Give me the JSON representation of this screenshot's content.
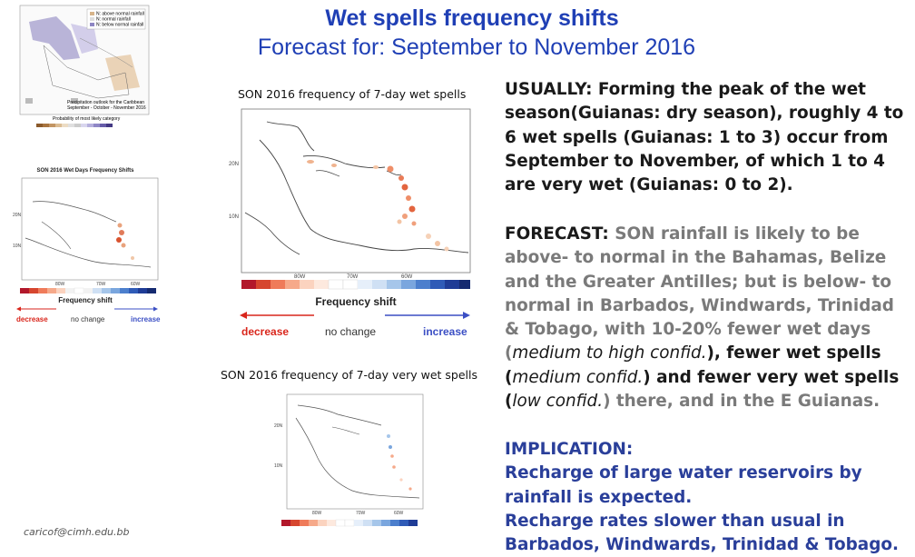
{
  "header": {
    "title": "Wet spells frequency shifts",
    "subtitle": "Forecast for: September to November 2016"
  },
  "captions": {
    "top_map": "SON 2016 frequency of 7-day wet spells",
    "bottom_map": "SON 2016 frequency of 7-day very wet spells"
  },
  "contact": "caricof@cimh.edu.bb",
  "legend_large": {
    "title": "Frequency shift",
    "decrease": "decrease",
    "no_change": "no change",
    "increase": "increase",
    "lon_labels": [
      "80W",
      "70W",
      "60W"
    ],
    "lat_labels": [
      "20N",
      "10N"
    ]
  },
  "legend_small": {
    "title": "Frequency shift",
    "decrease": "decrease",
    "no_change": "no change",
    "increase": "increase",
    "lon_labels": [
      "80W",
      "70W",
      "60W"
    ],
    "lat_labels": [
      "20N",
      "10N"
    ]
  },
  "thumbnail": {
    "title": "SON 2016 Wet Days Frequency Shifts",
    "precip_title": "Precipitation outlook for the Caribbean",
    "precip_period": "September - October - November 2016",
    "legend_items": [
      "N: above normal rainfall",
      "N: normal rainfall",
      "N: below normal rainfall"
    ],
    "prob_label": "Probability of most likely category"
  },
  "colors": {
    "title_blue": "#1f3fb5",
    "decrease_red": "#d9261c",
    "increase_blue": "#3b4fc4",
    "implication_blue": "#2a3f9a"
  },
  "text_blocks": {
    "usually": "USUALLY: Forming the peak of the wet season(Guianas: dry season), roughly 4 to 6 wet spells (Guianas: 1 to 3) occur from September to November, of which 1 to 4 are very wet (Guianas: 0 to 2).",
    "forecast_label": "FORECAST:",
    "forecast_1": " SON rainfall is likely to be above- to normal in the Bahamas, Belize and the Greater Antilles; but is below- to normal in Barbados, Windwards, Trinidad & Tobago, with 10-20% fewer wet days (",
    "forecast_conf1": "medium to high confid.",
    "forecast_2": "), fewer wet spells (",
    "forecast_conf2": "medium confid.",
    "forecast_3": ") and fewer very wet spells (",
    "forecast_conf3": "low confid.",
    "forecast_4": ") there, and in the E Guianas.",
    "implication_label": "IMPLICATION:",
    "implication_1": "Recharge of large water reservoirs by rainfall is expected.",
    "implication_2": "Recharge rates slower than usual in Barbados, Windwards, Trinidad & Tobago."
  }
}
